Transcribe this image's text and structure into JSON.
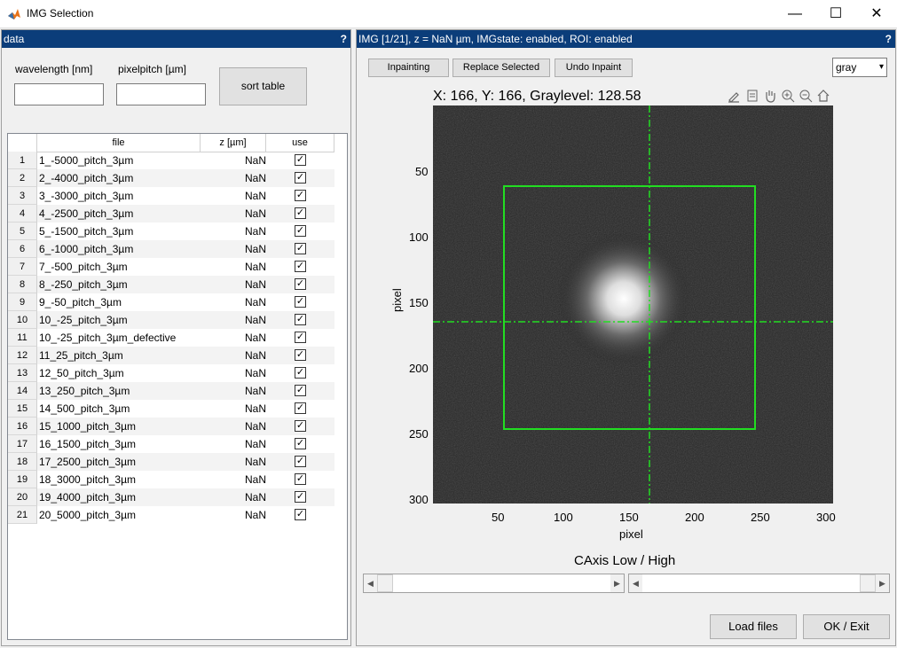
{
  "window": {
    "title": "IMG Selection",
    "minimize": "—",
    "maximize": "☐",
    "close": "✕"
  },
  "left_panel": {
    "header": "data",
    "help": "?",
    "wavelength_label": "wavelength [nm]",
    "pixelpitch_label": "pixelpitch [µm]",
    "wavelength_value": "",
    "pixelpitch_value": "",
    "sort_button": "sort table"
  },
  "table": {
    "columns": [
      "file",
      "z [µm]",
      "use"
    ],
    "rows": [
      {
        "n": "1",
        "file": "1_-5000_pitch_3µm",
        "z": "NaN",
        "use": true
      },
      {
        "n": "2",
        "file": "2_-4000_pitch_3µm",
        "z": "NaN",
        "use": true
      },
      {
        "n": "3",
        "file": "3_-3000_pitch_3µm",
        "z": "NaN",
        "use": true
      },
      {
        "n": "4",
        "file": "4_-2500_pitch_3µm",
        "z": "NaN",
        "use": true
      },
      {
        "n": "5",
        "file": "5_-1500_pitch_3µm",
        "z": "NaN",
        "use": true
      },
      {
        "n": "6",
        "file": "6_-1000_pitch_3µm",
        "z": "NaN",
        "use": true
      },
      {
        "n": "7",
        "file": "7_-500_pitch_3µm",
        "z": "NaN",
        "use": true
      },
      {
        "n": "8",
        "file": "8_-250_pitch_3µm",
        "z": "NaN",
        "use": true
      },
      {
        "n": "9",
        "file": "9_-50_pitch_3µm",
        "z": "NaN",
        "use": true
      },
      {
        "n": "10",
        "file": "10_-25_pitch_3µm",
        "z": "NaN",
        "use": true
      },
      {
        "n": "11",
        "file": "10_-25_pitch_3µm_defective",
        "z": "NaN",
        "use": true
      },
      {
        "n": "12",
        "file": "11_25_pitch_3µm",
        "z": "NaN",
        "use": true
      },
      {
        "n": "13",
        "file": "12_50_pitch_3µm",
        "z": "NaN",
        "use": true
      },
      {
        "n": "14",
        "file": "13_250_pitch_3µm",
        "z": "NaN",
        "use": true
      },
      {
        "n": "15",
        "file": "14_500_pitch_3µm",
        "z": "NaN",
        "use": true
      },
      {
        "n": "16",
        "file": "15_1000_pitch_3µm",
        "z": "NaN",
        "use": true
      },
      {
        "n": "17",
        "file": "16_1500_pitch_3µm",
        "z": "NaN",
        "use": true
      },
      {
        "n": "18",
        "file": "17_2500_pitch_3µm",
        "z": "NaN",
        "use": true
      },
      {
        "n": "19",
        "file": "18_3000_pitch_3µm",
        "z": "NaN",
        "use": true
      },
      {
        "n": "20",
        "file": "19_4000_pitch_3µm",
        "z": "NaN",
        "use": true
      },
      {
        "n": "21",
        "file": "20_5000_pitch_3µm",
        "z": "NaN",
        "use": true
      }
    ]
  },
  "right_panel": {
    "header": "IMG [1/21], z = NaN µm, IMGstate: enabled, ROI: enabled",
    "help": "?",
    "inpainting_button": "Inpainting",
    "replace_button": "Replace Selected",
    "undo_button": "Undo Inpaint",
    "colormap_value": "gray",
    "status": "X: 166, Y: 166, Graylevel: 128.58",
    "xlabel": "pixel",
    "ylabel": "pixel",
    "xticks": [
      "50",
      "100",
      "150",
      "200",
      "250",
      "300"
    ],
    "yticks": [
      "50",
      "100",
      "150",
      "200",
      "250",
      "300"
    ],
    "caxis_label": "CAxis Low / High",
    "caxis_low": 0.0,
    "caxis_high": 1.0,
    "load_button": "Load files",
    "ok_button": "OK / Exit"
  },
  "toolbar_icons": [
    "brush-icon",
    "data-tip-icon",
    "pan-icon",
    "zoom-in-icon",
    "zoom-out-icon",
    "home-icon"
  ],
  "colors": {
    "header_bg": "#0b3d7a",
    "roi_green": "#22dd22"
  }
}
